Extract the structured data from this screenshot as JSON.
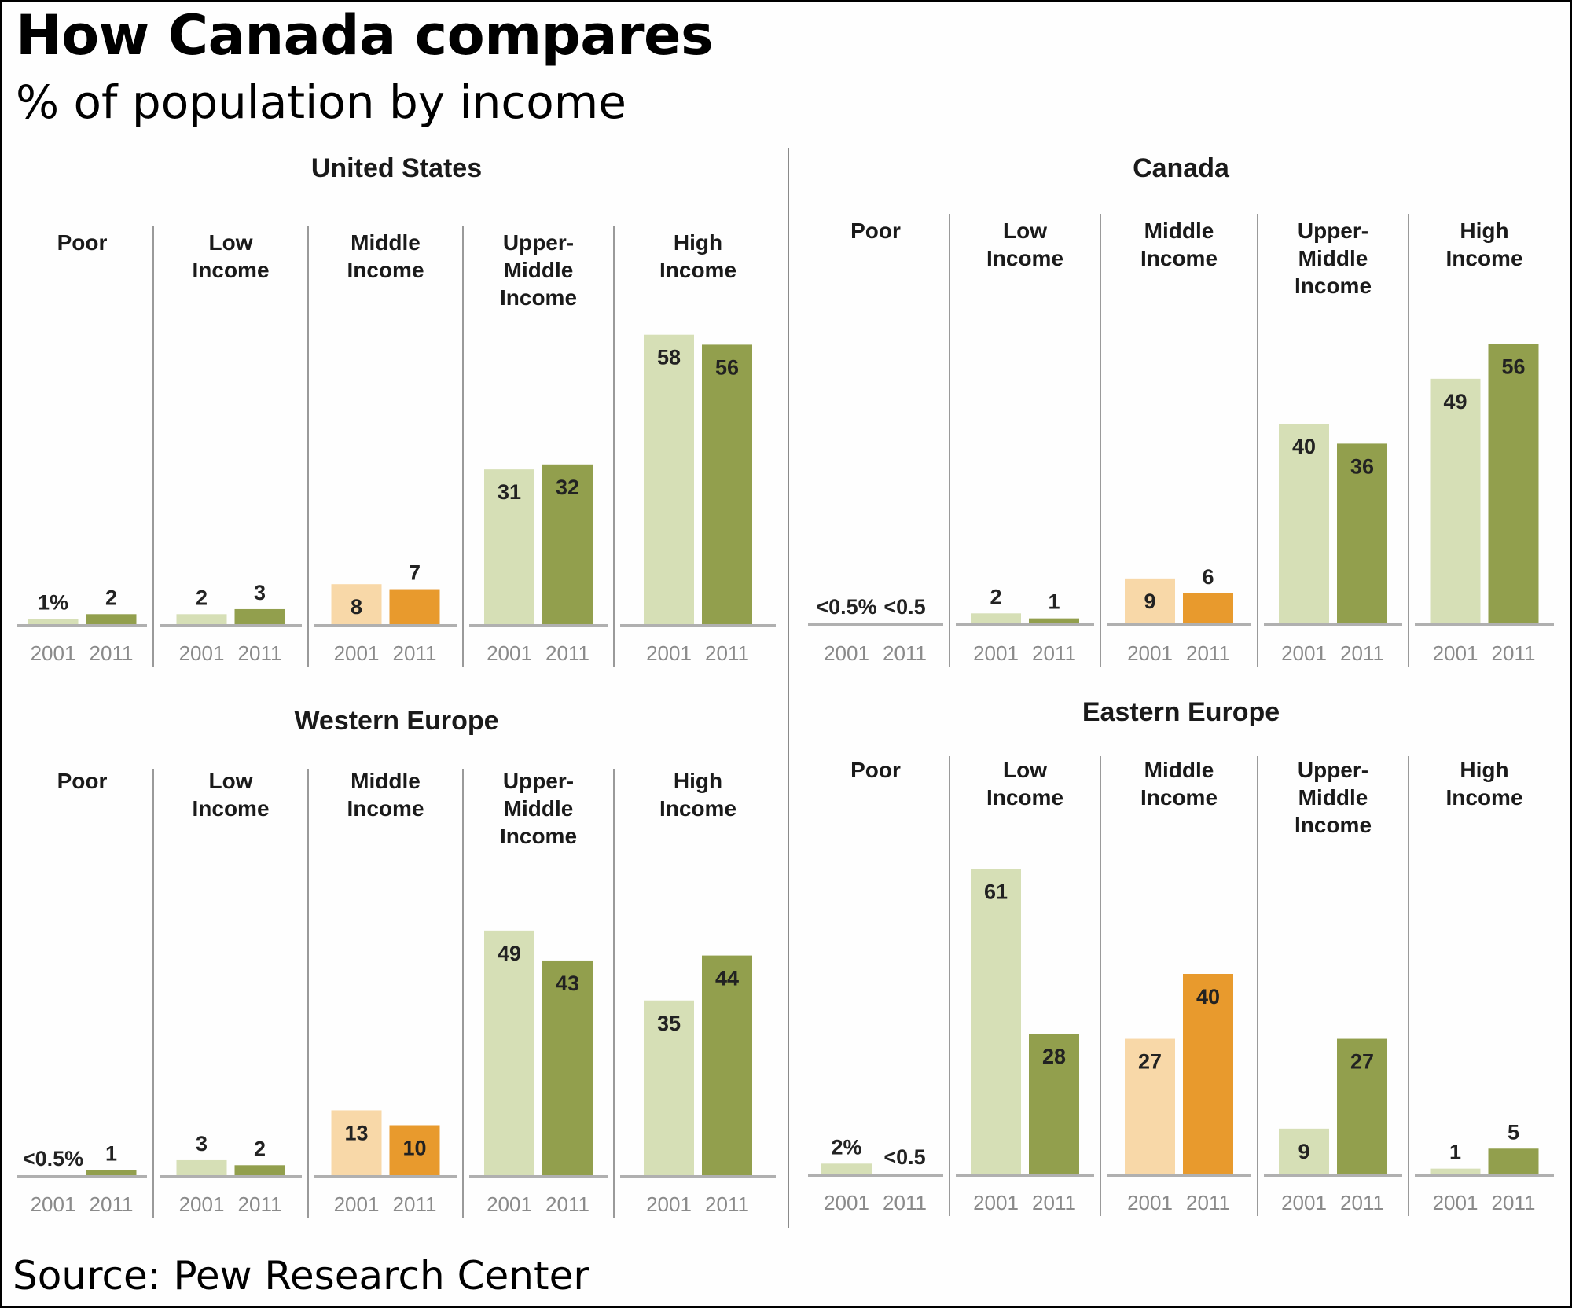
{
  "title": "How Canada compares",
  "subtitle": "% of population by income",
  "source": "Source: Pew Research Center",
  "colors": {
    "green_2001": "#d6dfb6",
    "green_2011": "#929f4d",
    "middle_2001": "#f8d8a8",
    "middle_2011": "#e89a2d",
    "baseline": "#b0b0b0",
    "divider": "#9a9a9a"
  },
  "chart_data": [
    {
      "type": "bar",
      "title": "United States",
      "categories": [
        "Poor",
        "Low Income",
        "Middle Income",
        "Upper-Middle Income",
        "High Income"
      ],
      "category_lines": [
        [
          "Poor"
        ],
        [
          "Low",
          "Income"
        ],
        [
          "Middle",
          "Income"
        ],
        [
          "Upper-",
          "Middle",
          "Income"
        ],
        [
          "High",
          "Income"
        ]
      ],
      "years": [
        "2001",
        "2011"
      ],
      "series": [
        {
          "name": "2001",
          "values": [
            1,
            2,
            8,
            31,
            58
          ],
          "labels": [
            "1%",
            "2",
            "8",
            "31",
            "58"
          ]
        },
        {
          "name": "2011",
          "values": [
            2,
            3,
            7,
            32,
            56
          ],
          "labels": [
            "2",
            "3",
            "7",
            "32",
            "56"
          ]
        }
      ],
      "ylabel": "% of population",
      "ylim": [
        0,
        65
      ]
    },
    {
      "type": "bar",
      "title": "Canada",
      "categories": [
        "Poor",
        "Low Income",
        "Middle Income",
        "Upper-Middle Income",
        "High Income"
      ],
      "category_lines": [
        [
          "Poor"
        ],
        [
          "Low",
          "Income"
        ],
        [
          "Middle",
          "Income"
        ],
        [
          "Upper-",
          "Middle",
          "Income"
        ],
        [
          "High",
          "Income"
        ]
      ],
      "years": [
        "2001",
        "2011"
      ],
      "series": [
        {
          "name": "2001",
          "values": [
            0,
            2,
            9,
            40,
            49
          ],
          "labels": [
            "<0.5%",
            "2",
            "9",
            "40",
            "49"
          ]
        },
        {
          "name": "2011",
          "values": [
            0,
            1,
            6,
            36,
            56
          ],
          "labels": [
            "<0.5",
            "1",
            "6",
            "36",
            "56"
          ]
        }
      ],
      "ylabel": "% of population",
      "ylim": [
        0,
        65
      ]
    },
    {
      "type": "bar",
      "title": "Western Europe",
      "categories": [
        "Poor",
        "Low Income",
        "Middle Income",
        "Upper-Middle Income",
        "High Income"
      ],
      "category_lines": [
        [
          "Poor"
        ],
        [
          "Low",
          "Income"
        ],
        [
          "Middle",
          "Income"
        ],
        [
          "Upper-",
          "Middle",
          "Income"
        ],
        [
          "High",
          "Income"
        ]
      ],
      "years": [
        "2001",
        "2011"
      ],
      "series": [
        {
          "name": "2001",
          "values": [
            0,
            3,
            13,
            49,
            35
          ],
          "labels": [
            "<0.5%",
            "3",
            "13",
            "49",
            "35"
          ]
        },
        {
          "name": "2011",
          "values": [
            1,
            2,
            10,
            43,
            44
          ],
          "labels": [
            "1",
            "2",
            "10",
            "43",
            "44"
          ]
        }
      ],
      "ylabel": "% of population",
      "ylim": [
        0,
        65
      ]
    },
    {
      "type": "bar",
      "title": "Eastern Europe",
      "categories": [
        "Poor",
        "Low Income",
        "Middle Income",
        "Upper-Middle Income",
        "High Income"
      ],
      "category_lines": [
        [
          "Poor"
        ],
        [
          "Low",
          "Income"
        ],
        [
          "Middle",
          "Income"
        ],
        [
          "Upper-",
          "Middle",
          "Income"
        ],
        [
          "High",
          "Income"
        ]
      ],
      "years": [
        "2001",
        "2011"
      ],
      "series": [
        {
          "name": "2001",
          "values": [
            2,
            61,
            27,
            9,
            1
          ],
          "labels": [
            "2%",
            "61",
            "27",
            "9",
            "1"
          ]
        },
        {
          "name": "2011",
          "values": [
            0,
            28,
            40,
            27,
            5
          ],
          "labels": [
            "<0.5",
            "28",
            "40",
            "27",
            "5"
          ]
        }
      ],
      "ylabel": "% of population",
      "ylim": [
        0,
        65
      ]
    }
  ]
}
